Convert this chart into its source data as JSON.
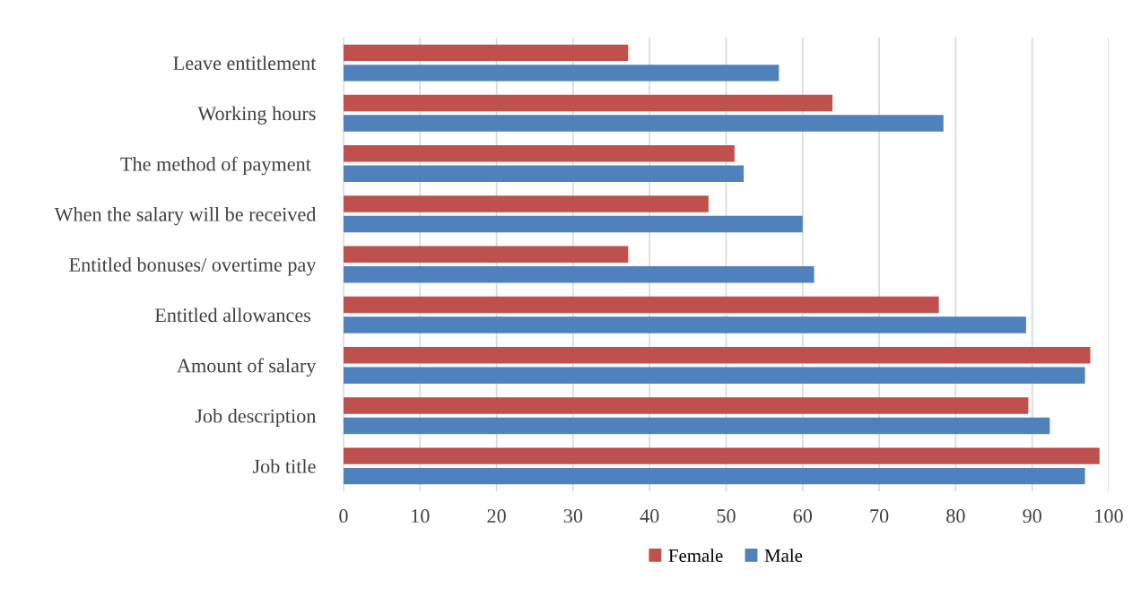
{
  "chart_data": {
    "type": "bar",
    "orientation": "horizontal",
    "categories": [
      "Leave entitlement",
      "Working hours",
      "The method of payment ",
      "When the salary will be received",
      "Entitled bonuses/ overtime pay",
      "Entitled allowances ",
      "Amount of salary",
      "Job description",
      "Job title"
    ],
    "series": [
      {
        "name": "Female",
        "color": "#c0504d",
        "values": [
          37.2,
          63.9,
          51.1,
          47.7,
          37.2,
          77.8,
          97.6,
          89.5,
          98.8
        ]
      },
      {
        "name": "Male",
        "color": "#4f81bd",
        "values": [
          56.9,
          78.4,
          52.3,
          60.0,
          61.5,
          89.2,
          96.9,
          92.3,
          96.9
        ]
      }
    ],
    "xlim": [
      0,
      100
    ],
    "xticks": [
      0,
      10,
      20,
      30,
      40,
      50,
      60,
      70,
      80,
      90,
      100
    ],
    "grid": "x",
    "legend": "bottom"
  }
}
